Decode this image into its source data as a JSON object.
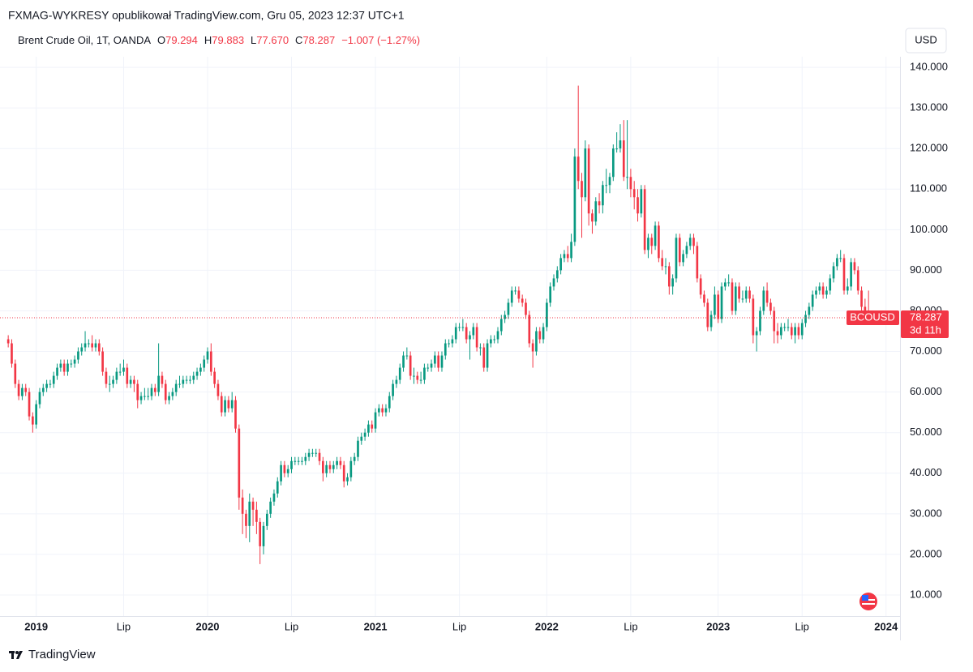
{
  "page": {
    "published": "FXMAG-WYKRESY opublikował TradingView.com, Gru 05, 2023 12:37 UTC+1",
    "brand": "TradingView"
  },
  "header": {
    "symbol": "Brent Crude Oil, 1T, OANDA",
    "o_label": "O",
    "o": "79.294",
    "h_label": "H",
    "h": "79.883",
    "l_label": "L",
    "l": "77.670",
    "c_label": "C",
    "c": "78.287",
    "change": "−1.007 (−1.27%)"
  },
  "chart_data": {
    "type": "candlestick",
    "currency": "USD",
    "ticker": "BCOUSD",
    "countdown": "3d 11h",
    "last_price": {
      "value": 78.287,
      "label": "78.287"
    },
    "up_color": "#089981",
    "down_color": "#f23645",
    "grid": true,
    "xlim": [
      -0.5,
      255
    ],
    "ylim": [
      4.8,
      149.6
    ],
    "xticks": [
      {
        "value": 8,
        "label": "2019"
      },
      {
        "value": 33,
        "label": "Lip"
      },
      {
        "value": 57,
        "label": "2020"
      },
      {
        "value": 81,
        "label": "Lip"
      },
      {
        "value": 105,
        "label": "2021"
      },
      {
        "value": 129,
        "label": "Lip"
      },
      {
        "value": 154,
        "label": "2022"
      },
      {
        "value": 178,
        "label": "Lip"
      },
      {
        "value": 203,
        "label": "2023"
      },
      {
        "value": 227,
        "label": "Lip"
      },
      {
        "value": 251,
        "label": "2024"
      }
    ],
    "yticks": [
      {
        "value": 10,
        "label": "10.000"
      },
      {
        "value": 20,
        "label": "20.000"
      },
      {
        "value": 30,
        "label": "30.000"
      },
      {
        "value": 40,
        "label": "40.000"
      },
      {
        "value": 50,
        "label": "50.000"
      },
      {
        "value": 60,
        "label": "60.000"
      },
      {
        "value": 70,
        "label": "70.000"
      },
      {
        "value": 80,
        "label": "80.000"
      },
      {
        "value": 90,
        "label": "90.000"
      },
      {
        "value": 100,
        "label": "100.000"
      },
      {
        "value": 110,
        "label": "110.000"
      },
      {
        "value": 120,
        "label": "120.000"
      },
      {
        "value": 130,
        "label": "130.000"
      },
      {
        "value": 140,
        "label": "140.000"
      }
    ],
    "open": [
      73,
      72,
      67,
      62,
      59,
      61,
      60,
      54,
      52,
      57,
      60,
      61,
      62,
      62,
      64,
      66,
      67,
      65,
      67,
      67,
      68,
      70,
      71,
      72,
      72,
      71,
      72,
      70,
      65,
      62,
      62,
      63,
      65,
      65,
      66,
      62,
      63,
      62,
      58,
      59,
      59,
      59,
      61,
      60,
      64,
      62,
      58,
      59,
      60,
      62,
      62,
      63,
      63,
      63,
      64,
      65,
      66,
      68,
      70,
      65,
      62,
      59,
      55,
      58,
      56,
      58,
      51,
      34,
      30,
      27,
      33,
      31,
      28,
      22,
      27,
      30,
      33,
      35,
      38,
      42,
      40,
      41,
      43,
      43,
      43,
      43,
      44,
      45,
      45,
      45,
      43,
      40,
      42,
      41,
      42,
      43,
      42,
      38,
      39,
      43,
      44,
      48,
      49,
      50,
      52,
      51,
      55,
      56,
      55,
      56,
      59,
      62,
      63,
      66,
      69,
      69,
      64,
      64,
      63,
      63,
      66,
      66,
      67,
      69,
      66,
      69,
      72,
      72,
      73,
      76,
      76,
      76,
      73,
      74,
      76,
      71,
      71,
      66,
      72,
      73,
      73,
      75,
      78,
      79,
      82,
      85,
      85,
      83,
      82,
      79,
      72,
      70,
      75,
      73,
      76,
      82,
      86,
      88,
      90,
      93,
      94,
      93,
      97,
      118,
      112,
      108,
      120,
      104,
      102,
      107,
      106,
      111,
      111,
      113,
      120,
      120,
      122,
      113,
      113,
      110,
      108,
      104,
      110,
      95,
      98,
      96,
      101,
      93,
      91,
      91,
      86,
      88,
      98,
      92,
      94,
      96,
      98,
      96,
      88,
      84,
      82,
      76,
      79,
      84,
      78,
      86,
      87,
      87,
      80,
      86,
      83,
      83,
      85,
      83,
      74,
      75,
      80,
      85,
      82,
      80,
      75,
      74,
      76,
      76,
      76,
      74,
      76,
      74,
      77,
      79,
      81,
      84,
      85,
      86,
      84,
      85,
      88,
      91,
      93,
      93,
      85,
      86,
      92,
      90,
      85,
      81,
      80,
      79.294
    ],
    "high": [
      74,
      73,
      68,
      63,
      62,
      62,
      61,
      55,
      58,
      61,
      62,
      63,
      63,
      65,
      67,
      68,
      68,
      68,
      68,
      69,
      71,
      72,
      75,
      73,
      74,
      73,
      73,
      71,
      66,
      64,
      64,
      66,
      67,
      68,
      67,
      64,
      64,
      63,
      60,
      61,
      61,
      62,
      62,
      72,
      65,
      63,
      60,
      61,
      63,
      64,
      64,
      64,
      64,
      65,
      66,
      67,
      69,
      71,
      72,
      66,
      63,
      60,
      59,
      59,
      60,
      59,
      52,
      36,
      31,
      35,
      34,
      33,
      29,
      28,
      31,
      34,
      36,
      39,
      43,
      43,
      42,
      44,
      44,
      44,
      44,
      45,
      46,
      46,
      46,
      46,
      44,
      43,
      43,
      43,
      44,
      44,
      43,
      40,
      44,
      45,
      49,
      50,
      51,
      53,
      53,
      56,
      57,
      57,
      57,
      60,
      63,
      64,
      67,
      70,
      71,
      70,
      66,
      65,
      65,
      67,
      67,
      68,
      70,
      70,
      70,
      73,
      73,
      74,
      77,
      77,
      78,
      77,
      75,
      77,
      77,
      72,
      72,
      73,
      74,
      74,
      76,
      79,
      80,
      83,
      86,
      86,
      86,
      84,
      83,
      80,
      73,
      76,
      76,
      77,
      83,
      87,
      89,
      91,
      94,
      95,
      96,
      99,
      120,
      135.5,
      114,
      122,
      121,
      105,
      108,
      109,
      112,
      115,
      114,
      121,
      124,
      126,
      127,
      127,
      115,
      112,
      110,
      111,
      111,
      99,
      99,
      102,
      102,
      95,
      93,
      92,
      89,
      99,
      99,
      95,
      97,
      99,
      99,
      97,
      89,
      85,
      83,
      80,
      86,
      85,
      87,
      88,
      89,
      88,
      87,
      87,
      85,
      86,
      86,
      84,
      76,
      81,
      86,
      87,
      83,
      81,
      77,
      77,
      77,
      78,
      77,
      77,
      77,
      78,
      80,
      82,
      85,
      86,
      87,
      87,
      86,
      89,
      92,
      94,
      95,
      94,
      88,
      93,
      93,
      91,
      86,
      83,
      85,
      79.883
    ],
    "low": [
      71,
      66,
      61,
      58,
      58,
      59,
      53,
      50,
      51,
      56,
      59,
      60,
      61,
      61,
      63,
      65,
      64,
      64,
      66,
      66,
      67,
      69,
      70,
      71,
      70,
      70,
      69,
      64,
      61,
      60,
      61,
      62,
      64,
      64,
      61,
      61,
      60,
      56,
      57,
      58,
      58,
      58,
      59,
      59,
      61,
      57,
      57,
      58,
      59,
      61,
      61,
      62,
      62,
      62,
      63,
      64,
      65,
      67,
      64,
      61,
      58,
      54,
      54,
      55,
      55,
      50,
      31,
      25,
      24,
      23,
      27,
      25,
      17.6,
      20,
      26,
      29,
      32,
      34,
      37,
      39,
      39,
      40,
      42,
      42,
      42,
      42,
      43,
      44,
      44,
      42,
      38,
      39,
      40,
      40,
      41,
      41,
      36.5,
      37,
      38,
      42,
      43,
      47,
      48,
      49,
      50,
      50,
      54,
      54,
      54,
      55,
      58,
      61,
      62,
      65,
      68,
      63,
      62,
      62,
      62,
      62,
      65,
      65,
      66,
      65,
      65,
      68,
      71,
      71,
      72,
      75,
      75,
      72,
      68,
      73,
      70,
      69,
      65,
      65,
      71,
      72,
      72,
      74,
      77,
      78,
      81,
      84,
      82,
      81,
      78,
      71,
      66,
      69,
      72,
      72,
      75,
      81,
      85,
      87,
      89,
      92,
      92,
      92,
      96,
      110,
      98,
      107,
      101,
      99,
      101,
      104,
      104,
      109,
      109,
      112,
      119,
      119,
      112,
      110,
      108,
      105,
      102,
      103,
      94,
      93,
      94,
      95,
      92,
      90,
      89,
      84,
      84,
      87,
      91,
      91,
      93,
      95,
      94,
      87,
      83,
      81,
      75,
      75,
      78,
      77,
      77,
      85,
      86,
      79,
      79,
      82,
      82,
      82,
      82,
      72,
      70,
      74,
      79,
      81,
      79,
      72,
      72,
      73,
      75,
      75,
      73,
      72,
      73,
      73,
      76,
      78,
      80,
      83,
      84,
      83,
      83,
      84,
      87,
      90,
      92,
      84,
      84,
      85,
      89,
      84,
      80,
      79,
      78,
      77.67
    ],
    "close": [
      72,
      67,
      62,
      59,
      61,
      60,
      54,
      52,
      57,
      60,
      61,
      62,
      62,
      64,
      66,
      67,
      65,
      67,
      67,
      68,
      70,
      71,
      72,
      72,
      71,
      72,
      70,
      65,
      62,
      62,
      63,
      65,
      65,
      66,
      62,
      63,
      62,
      58,
      59,
      59,
      59,
      61,
      60,
      64,
      62,
      58,
      59,
      60,
      62,
      62,
      63,
      63,
      63,
      64,
      65,
      66,
      68,
      70,
      65,
      62,
      59,
      55,
      58,
      56,
      58,
      51,
      34,
      30,
      27,
      33,
      31,
      28,
      22,
      27,
      30,
      33,
      35,
      38,
      42,
      40,
      41,
      43,
      43,
      43,
      43,
      44,
      45,
      45,
      45,
      43,
      40,
      42,
      41,
      42,
      43,
      42,
      38,
      39,
      43,
      44,
      48,
      49,
      50,
      52,
      51,
      55,
      56,
      55,
      56,
      59,
      62,
      63,
      66,
      69,
      69,
      64,
      64,
      63,
      63,
      66,
      66,
      67,
      69,
      66,
      69,
      72,
      72,
      73,
      76,
      76,
      76,
      73,
      74,
      76,
      71,
      71,
      66,
      72,
      73,
      73,
      75,
      78,
      79,
      82,
      85,
      85,
      83,
      82,
      79,
      72,
      70,
      75,
      73,
      76,
      82,
      86,
      88,
      90,
      93,
      94,
      93,
      97,
      118,
      112,
      108,
      120,
      104,
      102,
      107,
      106,
      111,
      111,
      113,
      120,
      120,
      122,
      113,
      113,
      110,
      108,
      104,
      110,
      95,
      98,
      96,
      101,
      93,
      91,
      91,
      86,
      88,
      98,
      92,
      94,
      96,
      98,
      96,
      88,
      84,
      82,
      76,
      79,
      84,
      78,
      86,
      87,
      87,
      80,
      86,
      83,
      83,
      85,
      83,
      74,
      75,
      80,
      85,
      82,
      80,
      75,
      74,
      76,
      76,
      76,
      74,
      76,
      74,
      77,
      79,
      81,
      84,
      85,
      86,
      84,
      85,
      88,
      91,
      93,
      93,
      85,
      86,
      92,
      90,
      85,
      81,
      80,
      79.294,
      78.287
    ]
  }
}
